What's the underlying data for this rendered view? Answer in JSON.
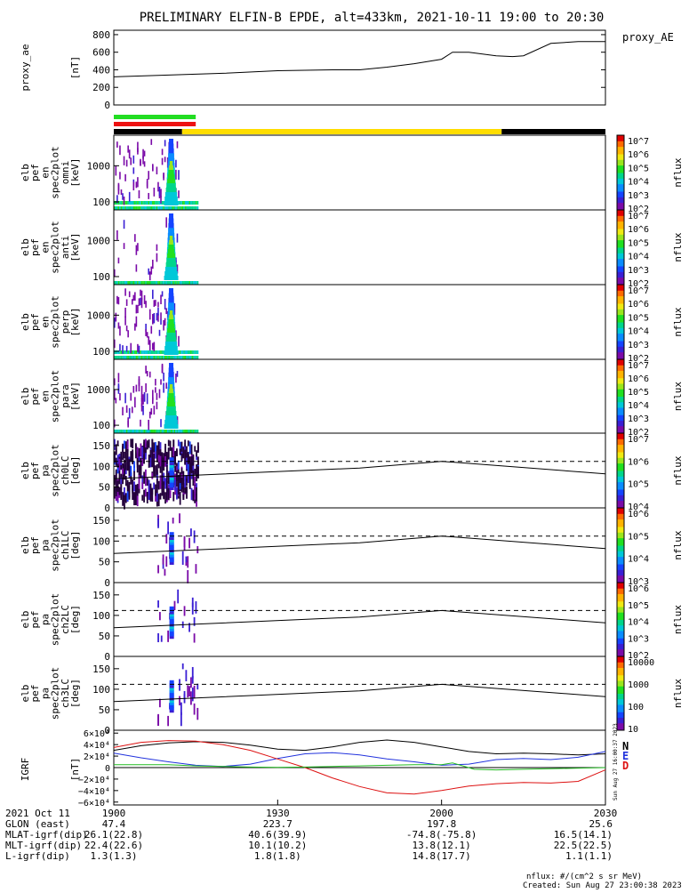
{
  "title": "PRELIMINARY ELFIN-B EPDE, alt=433km, 2021-10-11 19:00 to 20:30",
  "colors": {
    "fgs_green": "#22dd22",
    "fgs_red": "#ee1111",
    "mode_black": "#000000",
    "mode_yellow": "#ffdd00",
    "igrf_n": "#000000",
    "igrf_e": "#2233dd",
    "igrf_d": "#dd1111",
    "igrf_green": "#22bb22"
  },
  "colorbar_palette": [
    "#7a0aa8",
    "#3a1fd4",
    "#1444ff",
    "#0a8cff",
    "#00c8d8",
    "#00d68a",
    "#20e020",
    "#9ae61c",
    "#f0ea12",
    "#ffb400",
    "#ff6a00",
    "#e00000"
  ],
  "chart_data": [
    {
      "type": "line",
      "panel_label": [
        "proxy_ae",
        "[nT]"
      ],
      "legend": "proxy_AE",
      "xlim_min": [
        0,
        90
      ],
      "ylim": [
        0,
        850
      ],
      "yticks": [
        0,
        200,
        400,
        600,
        800
      ],
      "ytick_labels": [
        "0",
        "200",
        "400",
        "600",
        "800"
      ],
      "x_min": [
        0,
        10,
        20,
        30,
        40,
        45,
        50,
        55,
        60,
        62,
        65,
        70,
        73,
        75,
        80,
        85,
        90
      ],
      "y": [
        320,
        340,
        360,
        390,
        400,
        400,
        430,
        470,
        520,
        600,
        600,
        560,
        550,
        560,
        700,
        720,
        720
      ]
    },
    {
      "type": "heatmap",
      "panel_label": [
        "elb",
        "pef",
        "en",
        "spec2plot",
        "omni",
        "[keV]"
      ],
      "ylog": true,
      "ylim": [
        60,
        7000
      ],
      "ytick_labels": [
        "100",
        "1000"
      ],
      "colorbar": {
        "label": "nflux",
        "tick_labels": [
          "10^2",
          "10^3",
          "10^4",
          "10^5",
          "10^6",
          "10^7"
        ]
      }
    },
    {
      "type": "heatmap",
      "panel_label": [
        "elb",
        "pef",
        "en",
        "spec2plot",
        "anti",
        "[keV]"
      ],
      "ylog": true,
      "ylim": [
        60,
        7000
      ],
      "ytick_labels": [
        "100",
        "1000"
      ],
      "colorbar": {
        "label": "nflux",
        "tick_labels": [
          "10^2",
          "10^3",
          "10^4",
          "10^5",
          "10^6",
          "10^7"
        ]
      }
    },
    {
      "type": "heatmap",
      "panel_label": [
        "elb",
        "pef",
        "en",
        "spec2plot",
        "perp",
        "[keV]"
      ],
      "ylog": true,
      "ylim": [
        60,
        7000
      ],
      "ytick_labels": [
        "100",
        "1000"
      ],
      "colorbar": {
        "label": "nflux",
        "tick_labels": [
          "10^2",
          "10^3",
          "10^4",
          "10^5",
          "10^6",
          "10^7"
        ]
      }
    },
    {
      "type": "heatmap",
      "panel_label": [
        "elb",
        "pef",
        "en",
        "spec2plot",
        "para",
        "[keV]"
      ],
      "ylog": true,
      "ylim": [
        60,
        7000
      ],
      "ytick_labels": [
        "100",
        "1000"
      ],
      "colorbar": {
        "label": "nflux",
        "tick_labels": [
          "10^2",
          "10^3",
          "10^4",
          "10^5",
          "10^6",
          "10^7"
        ]
      }
    },
    {
      "type": "heatmap",
      "panel_label": [
        "elb",
        "pef",
        "pa",
        "spec2plot",
        "ch0LC",
        "[deg]"
      ],
      "ylim": [
        0,
        180
      ],
      "yticks": [
        0,
        50,
        100,
        150
      ],
      "ytick_labels": [
        "0",
        "50",
        "100",
        "150"
      ],
      "dashed_level": 112,
      "lc_x_min": [
        0,
        45,
        60,
        90
      ],
      "lc_y": [
        70,
        96,
        112,
        82
      ],
      "colorbar": {
        "label": "nflux",
        "tick_labels": [
          "10^4",
          "10^5",
          "10^6",
          "10^7"
        ]
      }
    },
    {
      "type": "heatmap",
      "panel_label": [
        "elb",
        "pef",
        "pa",
        "spec2plot",
        "ch1LC",
        "[deg]"
      ],
      "ylim": [
        0,
        180
      ],
      "yticks": [
        0,
        50,
        100,
        150
      ],
      "ytick_labels": [
        "0",
        "50",
        "100",
        "150"
      ],
      "dashed_level": 112,
      "lc_x_min": [
        0,
        45,
        60,
        90
      ],
      "lc_y": [
        70,
        96,
        112,
        82
      ],
      "colorbar": {
        "label": "nflux",
        "tick_labels": [
          "10^3",
          "10^4",
          "10^5",
          "10^6"
        ]
      }
    },
    {
      "type": "heatmap",
      "panel_label": [
        "elb",
        "pef",
        "pa",
        "spec2plot",
        "ch2LC",
        "[deg]"
      ],
      "ylim": [
        0,
        180
      ],
      "yticks": [
        0,
        50,
        100,
        150
      ],
      "ytick_labels": [
        "0",
        "50",
        "100",
        "150"
      ],
      "dashed_level": 112,
      "lc_x_min": [
        0,
        45,
        60,
        90
      ],
      "lc_y": [
        70,
        96,
        112,
        82
      ],
      "colorbar": {
        "label": "nflux",
        "tick_labels": [
          "10^2",
          "10^3",
          "10^4",
          "10^5",
          "10^6"
        ]
      }
    },
    {
      "type": "heatmap",
      "panel_label": [
        "elb",
        "pef",
        "pa",
        "spec2plot",
        "ch3LC",
        "[deg]"
      ],
      "ylim": [
        0,
        180
      ],
      "yticks": [
        0,
        50,
        100,
        150
      ],
      "ytick_labels": [
        "0",
        "50",
        "100",
        "150"
      ],
      "dashed_level": 112,
      "lc_x_min": [
        0,
        45,
        60,
        90
      ],
      "lc_y": [
        70,
        96,
        112,
        82
      ],
      "colorbar": {
        "label": "nflux",
        "tick_labels": [
          "10",
          "100",
          "1000",
          "10000"
        ]
      }
    },
    {
      "type": "line",
      "panel_label": [
        "IGRF",
        "[nT]"
      ],
      "ylim": [
        -65000,
        65000
      ],
      "yticks": [
        -60000,
        -40000,
        -20000,
        0,
        20000,
        40000,
        60000
      ],
      "ytick_labels": [
        "−6×10⁴",
        "−4×10⁴",
        "−2×10⁴",
        "0",
        "2×10⁴",
        "4×10⁴",
        "6×10⁴"
      ],
      "legend": [
        "N",
        "E",
        "D"
      ],
      "series": [
        {
          "name": "N",
          "x_min": [
            0,
            5,
            10,
            15,
            20,
            25,
            30,
            35,
            40,
            45,
            50,
            55,
            60,
            65,
            70,
            75,
            80,
            85,
            90
          ],
          "y": [
            30000,
            38000,
            43000,
            45000,
            44000,
            39000,
            32000,
            30000,
            36000,
            44000,
            48000,
            44000,
            36000,
            28000,
            24000,
            25000,
            24000,
            22000,
            24000
          ]
        },
        {
          "name": "E",
          "x_min": [
            0,
            5,
            10,
            15,
            20,
            25,
            30,
            35,
            40,
            45,
            50,
            55,
            60,
            65,
            70,
            75,
            80,
            85,
            90
          ],
          "y": [
            25000,
            17000,
            10000,
            4000,
            2000,
            6000,
            16000,
            24000,
            26000,
            22000,
            15000,
            10000,
            4000,
            6000,
            14000,
            16000,
            14000,
            18000,
            28000
          ]
        },
        {
          "name": "D",
          "x_min": [
            0,
            5,
            10,
            15,
            20,
            25,
            30,
            35,
            40,
            45,
            50,
            55,
            60,
            65,
            70,
            75,
            80,
            85,
            90
          ],
          "y": [
            35000,
            44000,
            47000,
            46000,
            40000,
            30000,
            15000,
            0,
            -18000,
            -33000,
            -44000,
            -46000,
            -40000,
            -32000,
            -28000,
            -26000,
            -27000,
            -24000,
            -4000
          ]
        },
        {
          "name": "",
          "x_min": [
            0,
            5,
            10,
            15,
            20,
            25,
            30,
            35,
            40,
            45,
            50,
            55,
            60,
            62,
            66,
            70,
            75,
            80,
            85,
            90
          ],
          "y": [
            5000,
            5000,
            5000,
            3000,
            2000,
            1000,
            500,
            1000,
            2000,
            3000,
            4000,
            5000,
            5000,
            8000,
            -3000,
            -4000,
            -3000,
            -2000,
            -1000,
            0
          ]
        }
      ]
    }
  ],
  "xaxis": {
    "tick_labels": [
      "1900",
      "1930",
      "2000",
      "2030"
    ],
    "date_label": "2021 Oct 11",
    "rows": [
      {
        "label": "GLON (east)",
        "values": [
          "47.4",
          "223.7",
          "197.8",
          "25.6"
        ]
      },
      {
        "label": "MLAT-igrf(dip)",
        "values": [
          "26.1(22.8)",
          "40.6(39.9)",
          "-74.8(-75.8)",
          "16.5(14.1)"
        ]
      },
      {
        "label": "MLT-igrf(dip)",
        "values": [
          "22.4(22.6)",
          "10.1(10.2)",
          "13.8(12.1)",
          "22.5(22.5)"
        ]
      },
      {
        "label": "L-igrf(dip)",
        "values": [
          "1.3(1.3)",
          "1.8(1.8)",
          "14.8(17.7)",
          "1.1(1.1)"
        ]
      }
    ]
  },
  "footer": {
    "units": "nflux: #/(cm^2 s sr MeV)",
    "created": "Created: Sun Aug 27 23:00:38 2023",
    "side_stamp": "Sun Aug 27 16:00:37 2023"
  }
}
